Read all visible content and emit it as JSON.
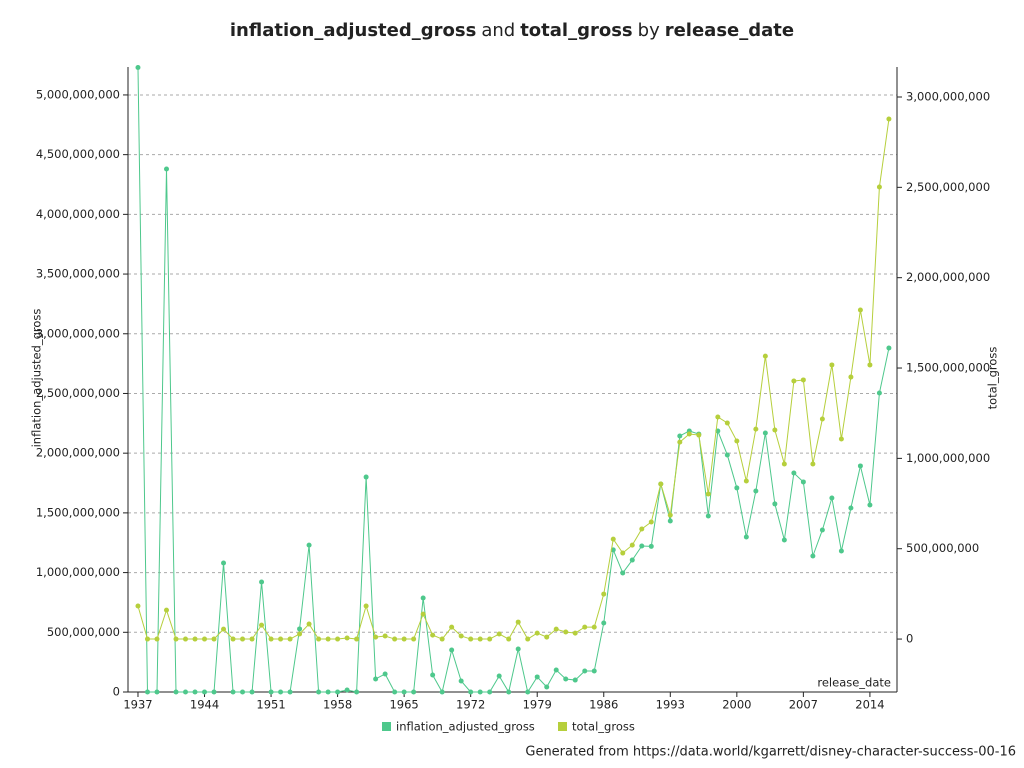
{
  "chart_data": {
    "type": "line",
    "title_parts": [
      "inflation_adjusted_gross",
      "and",
      "total_gross",
      "by",
      "release_date"
    ],
    "xlabel": "release_date",
    "ylabel": "inflation_adjusted_gross",
    "y2label": "total_gross",
    "footer": "Generated from https://data.world/kgarrett/disney-character-success-00-16",
    "xlim": [
      1935.95,
      2016.85
    ],
    "xticks": [
      1937,
      1944,
      1951,
      1958,
      1965,
      1972,
      1979,
      1986,
      1993,
      2000,
      2007,
      2014
    ],
    "ylim": [
      0,
      5234000000
    ],
    "yticks": [
      {
        "value": 0,
        "label": "0"
      },
      {
        "value": 500000000,
        "label": "500,000,000"
      },
      {
        "value": 1000000000,
        "label": "1,000,000,000"
      },
      {
        "value": 1500000000,
        "label": "1,500,000,000"
      },
      {
        "value": 2000000000,
        "label": "2,000,000,000"
      },
      {
        "value": 2500000000,
        "label": "2,500,000,000"
      },
      {
        "value": 3000000000,
        "label": "3,000,000,000"
      },
      {
        "value": 3500000000,
        "label": "3,500,000,000"
      },
      {
        "value": 4000000000,
        "label": "4,000,000,000"
      },
      {
        "value": 4500000000,
        "label": "4,500,000,000"
      },
      {
        "value": 5000000000,
        "label": "5,000,000,000"
      }
    ],
    "y2lim": [
      -293000000,
      3166000000
    ],
    "y2ticks": [
      {
        "value": 0,
        "label": "0"
      },
      {
        "value": 500000000,
        "label": "500,000,000"
      },
      {
        "value": 1000000000,
        "label": "1,000,000,000"
      },
      {
        "value": 1500000000,
        "label": "1,500,000,000"
      },
      {
        "value": 2000000000,
        "label": "2,000,000,000"
      },
      {
        "value": 2500000000,
        "label": "2,500,000,000"
      },
      {
        "value": 3000000000,
        "label": "3,000,000,000"
      }
    ],
    "grid": true,
    "legend": "bottom",
    "x": [
      1937,
      1938,
      1939,
      1940,
      1941,
      1942,
      1943,
      1944,
      1945,
      1946,
      1947,
      1948,
      1949,
      1950,
      1951,
      1952,
      1953,
      1954,
      1955,
      1956,
      1957,
      1958,
      1959,
      1960,
      1961,
      1962,
      1963,
      1964,
      1965,
      1966,
      1967,
      1968,
      1969,
      1970,
      1971,
      1972,
      1973,
      1974,
      1975,
      1976,
      1977,
      1978,
      1979,
      1980,
      1981,
      1982,
      1983,
      1984,
      1985,
      1986,
      1987,
      1988,
      1989,
      1990,
      1991,
      1992,
      1993,
      1994,
      1995,
      1996,
      1997,
      1998,
      1999,
      2000,
      2001,
      2002,
      2003,
      2004,
      2005,
      2006,
      2007,
      2008,
      2009,
      2010,
      2011,
      2012,
      2013,
      2014,
      2015,
      2016
    ],
    "series": [
      {
        "name": "inflation_adjusted_gross",
        "color": "#4ec88c",
        "axis": "y",
        "values": [
          5230000000,
          0,
          0,
          4380000000,
          0,
          0,
          0,
          0,
          0,
          1080000000,
          0,
          0,
          0,
          921000000,
          0,
          0,
          0,
          528000000,
          1230000000,
          0,
          0,
          0,
          17000000,
          0,
          1800000000,
          109000000,
          151000000,
          0,
          0,
          0,
          787000000,
          142000000,
          0,
          352000000,
          92000000,
          0,
          0,
          0,
          134000000,
          0,
          360000000,
          0,
          126000000,
          42000000,
          184000000,
          109000000,
          100000000,
          176000000,
          176000000,
          578000000,
          1190000000,
          997000000,
          1105000000,
          1223000000,
          1220000000,
          1742000000,
          1432000000,
          2144000000,
          2186000000,
          2160000000,
          1474000000,
          2186000000,
          1985000000,
          1709000000,
          1298000000,
          1683000000,
          2169000000,
          1575000000,
          1273000000,
          1834000000,
          1759000000,
          1139000000,
          1357000000,
          1625000000,
          1181000000,
          1541000000,
          1893000000,
          1566000000,
          2504000000,
          2881000000
        ]
      },
      {
        "name": "total_gross",
        "color": "#b6cf3c",
        "axis": "y2",
        "values": [
          183000000,
          0,
          0,
          160000000,
          0,
          0,
          0,
          0,
          0,
          55000000,
          0,
          0,
          0,
          77000000,
          0,
          0,
          0,
          28000000,
          83000000,
          0,
          0,
          0,
          6000000,
          0,
          183000000,
          11000000,
          17000000,
          0,
          0,
          0,
          138000000,
          22000000,
          0,
          66000000,
          17000000,
          0,
          0,
          0,
          28000000,
          0,
          94000000,
          0,
          33000000,
          11000000,
          55000000,
          39000000,
          33000000,
          66000000,
          66000000,
          249000000,
          553000000,
          476000000,
          520000000,
          609000000,
          648000000,
          858000000,
          686000000,
          1090000000,
          1135000000,
          1129000000,
          803000000,
          1229000000,
          1196000000,
          1096000000,
          875000000,
          1162000000,
          1566000000,
          1157000000,
          969000000,
          1428000000,
          1434000000,
          969000000,
          1218000000,
          1517000000,
          1107000000,
          1450000000,
          1821000000,
          1517000000,
          2502000000,
          2878000000
        ]
      }
    ]
  }
}
